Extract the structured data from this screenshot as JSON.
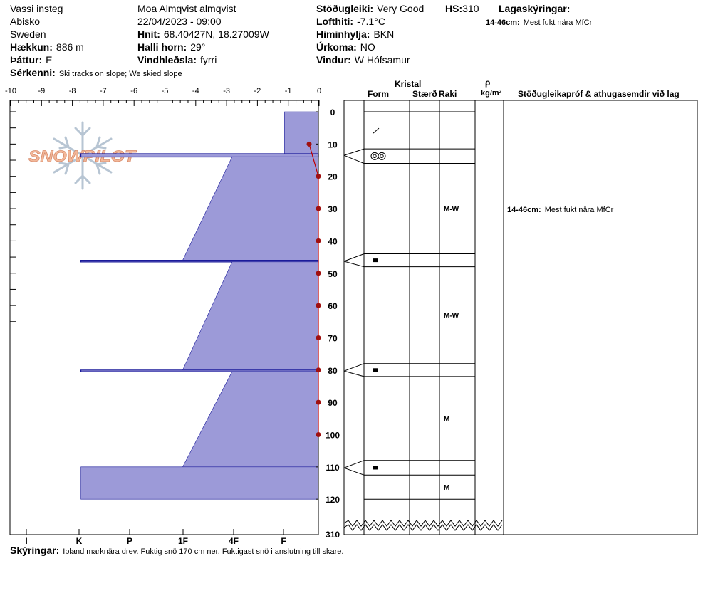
{
  "header": {
    "col1": [
      "Vassi insteg",
      "Abisko",
      "Sweden"
    ],
    "elevation_label": "Hækkun:",
    "elevation_value": "886 m",
    "aspect_label": "Þáttur:",
    "aspect_value": "E",
    "observer": "Moa Almqvist almqvist",
    "datetime": "22/04/2023 - 09:00",
    "coords_label": "Hnit:",
    "coords_value": "68.40427N, 18.27009W",
    "slope_label": "Halli horn:",
    "slope_value": "29°",
    "wind_loading_label": "Vindhleðsla:",
    "wind_loading_value": "fyrri",
    "stability_label": "Stöðugleiki:",
    "stability_value": "Very Good",
    "hs_label": "HS:",
    "hs_value": "310",
    "airtemp_label": "Lofthiti:",
    "airtemp_value": "-7.1°C",
    "sky_label": "Himinhylja:",
    "sky_value": "BKN",
    "precip_label": "Úrkoma:",
    "precip_value": "NO",
    "wind_label": "Vindur:",
    "wind_value": "W Hófsamur",
    "layer_notes_label": "Lagaskýringar:",
    "layer_notes_value_range": "14-46cm:",
    "layer_notes_value_text": "Mest fukt nära MfCr",
    "features_label": "Sérkenni:",
    "features_value": "Ski tracks on slope; We skied slope"
  },
  "logo_text": "SNOWPILOT",
  "footer": {
    "comments_label": "Skýringar:",
    "comments_value": "Ibland marknära drev. Fuktig snö 170 cm ner. Fuktigast snö i anslutning till skare."
  },
  "columns": {
    "crystal": "Kristal",
    "form": "Form",
    "size": "Stærð",
    "moisture": "Raki",
    "density_symbol": "ρ",
    "density_unit": "kg/m³",
    "stability_comments": "Stöðugleikapróf & athugasemdir við lag"
  },
  "stability_notes": [
    {
      "range": "14-46cm:",
      "text": "Mest fukt nära MfCr",
      "depth": 30
    }
  ],
  "colors": {
    "hardness_fill": "#9c9ad8",
    "temp_line": "#c00000",
    "temp_point": "#a01010",
    "logo": "#f2b89a",
    "snowflake": "#b7c5d3"
  },
  "chart_data": {
    "type": "area",
    "title": "",
    "x_temp_ticks": [
      "-10",
      "-9",
      "-8",
      "-7",
      "-6",
      "-5",
      "-4",
      "-3",
      "-2",
      "-1",
      "0"
    ],
    "x_temp_range": [
      -10,
      0
    ],
    "hardness_ticks": [
      "I",
      "K",
      "P",
      "1F",
      "4F",
      "F"
    ],
    "y_range": [
      0,
      120
    ],
    "y_ticks": [
      "0",
      "10",
      "20",
      "30",
      "40",
      "50",
      "60",
      "70",
      "80",
      "90",
      "100",
      "110",
      "120"
    ],
    "hs_label": "310",
    "hardness_series": {
      "name": "",
      "unit": "hand hardness index (K=0, F=7.7)",
      "layers": [
        {
          "top": 0,
          "bottom": 13,
          "from": 1.1,
          "to": 1.1
        },
        {
          "top": 13,
          "bottom": 14,
          "from": 7.7,
          "to": 7.7
        },
        {
          "top": 14,
          "bottom": 46,
          "from": 2.8,
          "to": 4.4
        },
        {
          "top": 46,
          "bottom": 46.5,
          "from": 7.7,
          "to": 7.7
        },
        {
          "top": 46.5,
          "bottom": 80,
          "from": 2.8,
          "to": 4.4
        },
        {
          "top": 80,
          "bottom": 80.5,
          "from": 7.7,
          "to": 7.7
        },
        {
          "top": 80.5,
          "bottom": 110,
          "from": 2.8,
          "to": 4.4
        },
        {
          "top": 110,
          "bottom": 120,
          "from": 7.7,
          "to": 7.7
        }
      ]
    },
    "temperature_series": {
      "name": "",
      "points": [
        {
          "depth": 10,
          "temp": -0.3
        },
        {
          "depth": 20,
          "temp": 0
        },
        {
          "depth": 30,
          "temp": 0
        },
        {
          "depth": 40,
          "temp": 0
        },
        {
          "depth": 50,
          "temp": 0
        },
        {
          "depth": 60,
          "temp": 0
        },
        {
          "depth": 70,
          "temp": 0
        },
        {
          "depth": 80,
          "temp": 0
        },
        {
          "depth": 90,
          "temp": 0
        },
        {
          "depth": 100,
          "temp": 0
        }
      ]
    },
    "layer_boundaries": [
      0,
      11.5,
      16,
      44,
      48,
      78,
      82,
      108,
      112.5,
      120
    ],
    "crystal_rows": [
      {
        "top": 0,
        "bottom": 11.5,
        "symbol": "slash",
        "moisture": ""
      },
      {
        "top": 11.5,
        "bottom": 16,
        "symbol": "ring",
        "moisture": ""
      },
      {
        "top": 16,
        "bottom": 44,
        "symbol": "",
        "moisture": "M-W"
      },
      {
        "top": 44,
        "bottom": 48,
        "symbol": "crust",
        "moisture": ""
      },
      {
        "top": 48,
        "bottom": 78,
        "symbol": "",
        "moisture": "M-W"
      },
      {
        "top": 78,
        "bottom": 82,
        "symbol": "crust",
        "moisture": ""
      },
      {
        "top": 82,
        "bottom": 108,
        "symbol": "",
        "moisture": "M"
      },
      {
        "top": 108,
        "bottom": 112.5,
        "symbol": "crust",
        "moisture": ""
      },
      {
        "top": 112.5,
        "bottom": 120,
        "symbol": "",
        "moisture": "M"
      }
    ]
  }
}
